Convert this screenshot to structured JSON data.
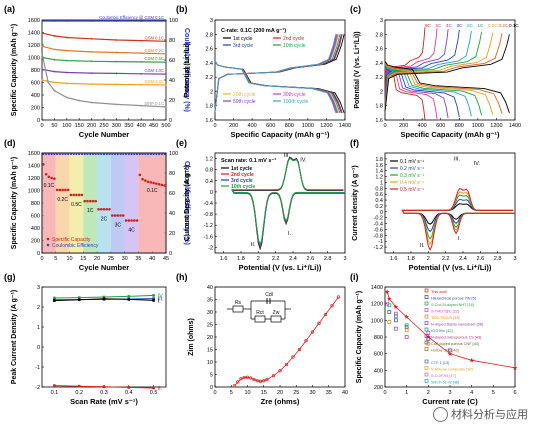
{
  "figure": {
    "panel_labels": [
      "(a)",
      "(b)",
      "(c)",
      "(d)",
      "(e)",
      "(f)",
      "(g)",
      "(h)",
      "(i)"
    ],
    "watermark": "材料分析与应用"
  },
  "chart_data": [
    {
      "id": "a",
      "type": "line",
      "xlabel": "Cycle Number",
      "ylabel": "Specific Capacity (mAh g⁻¹)",
      "y2label": "Coulombic Efficiency (%)",
      "xlim": [
        0,
        500
      ],
      "ylim": [
        0,
        1600
      ],
      "y2lim": [
        0,
        100
      ],
      "xticks": [
        0,
        50,
        100,
        150,
        200,
        250,
        300,
        350,
        400,
        450,
        500
      ],
      "yticks": [
        0,
        200,
        400,
        600,
        800,
        1000,
        1200,
        1400,
        1600
      ],
      "y2ticks": [
        0,
        20,
        40,
        60,
        80,
        100
      ],
      "series": [
        {
          "name": "Coulombic Efficiency @ GSM 0.1C",
          "color": "#3040c0",
          "axis": "y2",
          "x": [
            1,
            50,
            100,
            200,
            300,
            400,
            500
          ],
          "values": [
            99,
            99,
            99,
            99,
            99,
            99,
            99
          ]
        },
        {
          "name": "GSM 0.1C",
          "color": "#d03020",
          "x": [
            1,
            50,
            100,
            200,
            300,
            400,
            500
          ],
          "values": [
            1390,
            1345,
            1320,
            1300,
            1280,
            1270,
            1260
          ]
        },
        {
          "name": "GSM 0.2C",
          "color": "#e07a20",
          "x": [
            1,
            50,
            100,
            200,
            300,
            400,
            500
          ],
          "values": [
            1180,
            1130,
            1110,
            1090,
            1080,
            1070,
            1060
          ]
        },
        {
          "name": "GSM 0.5C",
          "color": "#30a040",
          "x": [
            1,
            50,
            100,
            200,
            300,
            400,
            500
          ],
          "values": [
            1000,
            965,
            950,
            940,
            935,
            930,
            925
          ]
        },
        {
          "name": "GSM 1.0C",
          "color": "#8040a0",
          "x": [
            1,
            50,
            100,
            200,
            300,
            400,
            500
          ],
          "values": [
            810,
            775,
            760,
            750,
            745,
            740,
            735
          ]
        },
        {
          "name": "GSM 2.0C",
          "color": "#f0a020",
          "x": [
            1,
            50,
            100,
            200,
            300,
            400,
            500
          ],
          "values": [
            640,
            600,
            585,
            575,
            570,
            565,
            560
          ]
        },
        {
          "name": "S/RP 0.1C",
          "color": "#909090",
          "x": [
            1,
            25,
            50,
            100,
            150,
            200,
            300,
            400,
            500
          ],
          "values": [
            1050,
            600,
            470,
            360,
            310,
            280,
            250,
            230,
            210
          ]
        }
      ]
    },
    {
      "id": "b",
      "type": "line",
      "annotation": "C-rate: 0.1C (200 mA g⁻¹)",
      "xlabel": "Specific Capacity (mAh g⁻¹)",
      "ylabel": "Potential (Li⁺/Li)",
      "xlim": [
        0,
        1400
      ],
      "ylim": [
        1.6,
        3.0
      ],
      "xticks": [
        0,
        200,
        400,
        600,
        800,
        1000,
        1200,
        1400
      ],
      "yticks": [
        1.6,
        1.8,
        2.0,
        2.2,
        2.4,
        2.6,
        2.8,
        3.0
      ],
      "series": [
        {
          "name": "1st cycle",
          "color": "#000000",
          "capacity": 1390
        },
        {
          "name": "2nd cycle",
          "color": "#d02020",
          "capacity": 1370
        },
        {
          "name": "3rd cycle",
          "color": "#2040c0",
          "capacity": 1360
        },
        {
          "name": "10th cycle",
          "color": "#20a040",
          "capacity": 1345
        },
        {
          "name": "20th cycle",
          "color": "#e0c020",
          "capacity": 1330
        },
        {
          "name": "30th cycle",
          "color": "#c040c0",
          "capacity": 1320
        },
        {
          "name": "50th cycle",
          "color": "#8040c0",
          "capacity": 1310
        },
        {
          "name": "100th cycle",
          "color": "#40a0c0",
          "capacity": 1300
        }
      ],
      "legend_top": [
        "1st cycle",
        "2nd cycle",
        "3rd cycle",
        "10th cycle"
      ],
      "legend_bottom": [
        "20th cycle",
        "30th cycle",
        "50th cycle",
        "100th cycle"
      ]
    },
    {
      "id": "c",
      "type": "line",
      "xlabel": "Specific Capacity (mAh g⁻¹)",
      "ylabel": "Potential (V (vs. Li⁺/Li))",
      "xlim": [
        0,
        1400
      ],
      "ylim": [
        1.6,
        3.0
      ],
      "xticks": [
        0,
        200,
        400,
        600,
        800,
        1000,
        1200,
        1400
      ],
      "yticks": [
        1.6,
        1.8,
        2.0,
        2.2,
        2.4,
        2.6,
        2.8,
        3.0
      ],
      "series": [
        {
          "name": "6C",
          "color": "#d02020",
          "capacity": 430
        },
        {
          "name": "5C",
          "color": "#e04080",
          "capacity": 560
        },
        {
          "name": "4C",
          "color": "#8040c0",
          "capacity": 680
        },
        {
          "name": "3C",
          "color": "#2040c0",
          "capacity": 800
        },
        {
          "name": "2C",
          "color": "#20a0c0",
          "capacity": 930
        },
        {
          "name": "1C",
          "color": "#20a040",
          "capacity": 1040
        },
        {
          "name": "0.5C",
          "color": "#e0a020",
          "capacity": 1160
        },
        {
          "name": "0.2C",
          "color": "#e06020",
          "capacity": 1260
        },
        {
          "name": "0.1C",
          "color": "#000000",
          "capacity": 1340
        }
      ],
      "rate_labels": [
        "6C",
        "5C",
        "4C",
        "3C",
        "2C",
        "1C",
        "0.5C",
        "0.2C",
        "0.1C"
      ]
    },
    {
      "id": "d",
      "type": "scatter",
      "xlabel": "Cycle Number",
      "ylabel": "Specific Capacity (mAh g⁻¹)",
      "y2label": "Coulombic Efficiency (%)",
      "xlim": [
        0,
        45
      ],
      "ylim": [
        0,
        1600
      ],
      "y2lim": [
        0,
        100
      ],
      "xticks": [
        0,
        5,
        10,
        15,
        20,
        25,
        30,
        35,
        40,
        45
      ],
      "yticks": [
        0,
        200,
        400,
        600,
        800,
        1000,
        1200,
        1400,
        1600
      ],
      "y2ticks": [
        0,
        20,
        40,
        60,
        80,
        100
      ],
      "bands": [
        {
          "label": "0.1C",
          "x": [
            0,
            5
          ],
          "color": "#f5a0a0",
          "capacity": 1230
        },
        {
          "label": "0.2C",
          "x": [
            5,
            10
          ],
          "color": "#f8c890",
          "capacity": 1010
        },
        {
          "label": "0.5C",
          "x": [
            10,
            15
          ],
          "color": "#f0e890",
          "capacity": 930
        },
        {
          "label": "1C",
          "x": [
            15,
            20
          ],
          "color": "#a8e0a0",
          "capacity": 830
        },
        {
          "label": "2C",
          "x": [
            20,
            25
          ],
          "color": "#a0d8e8",
          "capacity": 700
        },
        {
          "label": "3C",
          "x": [
            25,
            30
          ],
          "color": "#a8b8f0",
          "capacity": 600
        },
        {
          "label": "4C",
          "x": [
            30,
            35
          ],
          "color": "#c8b0f0",
          "capacity": 520
        },
        {
          "label": "0.1C",
          "x": [
            35,
            45
          ],
          "color": "#f5a0a0",
          "capacity": 1150
        }
      ],
      "series": [
        {
          "name": "Specific Capacity",
          "color": "#d02020"
        },
        {
          "name": "Coulombic Efficiency",
          "color": "#3040c0",
          "value": 99
        }
      ]
    },
    {
      "id": "e",
      "type": "line",
      "annotation": "Scan rate: 0.1 mV s⁻¹",
      "xlabel": "Potential (V (vs. Li⁺/Li))",
      "ylabel": "Current Density (A g⁻¹)",
      "xlim": [
        1.5,
        3.0
      ],
      "ylim": [
        -2.2,
        1.4
      ],
      "xticks": [
        1.6,
        1.8,
        2.0,
        2.2,
        2.4,
        2.6,
        2.8,
        3.0
      ],
      "yticks": [
        -2.0,
        -1.6,
        -1.2,
        -0.8,
        -0.4,
        0.0,
        0.4,
        0.8,
        1.2
      ],
      "series": [
        {
          "name": "1st cycle",
          "color": "#000000"
        },
        {
          "name": "2nd cycle",
          "color": "#d02020"
        },
        {
          "name": "3rd cycle",
          "color": "#2040c0"
        },
        {
          "name": "10th cycle",
          "color": "#20a040"
        }
      ],
      "peak_labels": [
        "I.",
        "II.",
        "III.",
        "IV."
      ]
    },
    {
      "id": "f",
      "type": "line",
      "xlabel": "Potential (V (vs. Li⁺/Li))",
      "ylabel": "Current density (A g⁻¹)",
      "xlim": [
        1.5,
        3.0
      ],
      "ylim": [
        -1.4,
        2.0
      ],
      "xticks": [
        1.6,
        1.8,
        2.0,
        2.2,
        2.4,
        2.6,
        2.8,
        3.0
      ],
      "yticks": [
        -1.2,
        -1.0,
        -0.8,
        -0.6,
        -0.4,
        -0.2,
        0.0,
        0.2,
        0.4,
        0.6,
        0.8,
        1.0,
        1.2,
        1.4,
        1.6,
        1.8
      ],
      "series": [
        {
          "name": "0.1 mV s⁻¹",
          "color": "#000000",
          "scale": 0.3
        },
        {
          "name": "0.2 mV s⁻¹",
          "color": "#2040c0",
          "scale": 0.5
        },
        {
          "name": "0.3 mV s⁻¹",
          "color": "#20a040",
          "scale": 0.7
        },
        {
          "name": "0.4 mV s⁻¹",
          "color": "#e0a020",
          "scale": 0.85
        },
        {
          "name": "0.5 mV s⁻¹",
          "color": "#d02020",
          "scale": 1.0
        }
      ],
      "peak_labels": [
        "I.",
        "II.",
        "III.",
        "IV."
      ]
    },
    {
      "id": "g",
      "type": "line",
      "xlabel": "Scan Rate (mV s⁻¹)",
      "ylabel": "Peak Current Density (A g⁻¹)",
      "xlim": [
        0.05,
        0.55
      ],
      "ylim": [
        -2.0,
        3.0
      ],
      "xticks": [
        0.1,
        0.2,
        0.3,
        0.4,
        0.5
      ],
      "yticks": [
        -2,
        -1,
        0,
        1,
        2,
        3
      ],
      "x": [
        0.1,
        0.2,
        0.3,
        0.4,
        0.5
      ],
      "series": [
        {
          "name": "IV.",
          "color": "#20a040",
          "values": [
            2.45,
            2.47,
            2.5,
            2.53,
            2.58
          ]
        },
        {
          "name": "III.",
          "color": "#2040c0",
          "values": [
            2.36,
            2.37,
            2.38,
            2.4,
            2.42
          ]
        },
        {
          "name": "I.",
          "color": "#000000",
          "values": [
            2.32,
            2.36,
            2.41,
            2.38,
            2.33
          ]
        },
        {
          "name": "II.",
          "color": "#d02020",
          "values": [
            -1.93,
            -1.96,
            -1.99,
            -2.02,
            -2.05
          ]
        }
      ]
    },
    {
      "id": "h",
      "type": "scatter",
      "xlabel": "Zre (ohms)",
      "ylabel": "Zim (ohms)",
      "xlim": [
        0,
        40
      ],
      "ylim": [
        0,
        40
      ],
      "xticks": [
        0,
        5,
        10,
        15,
        20,
        25,
        30,
        35,
        40
      ],
      "yticks": [
        0,
        5,
        10,
        15,
        20,
        25,
        30,
        35,
        40
      ],
      "series": [
        {
          "color": "#d02020",
          "x": [
            6,
            7,
            8,
            9,
            10,
            11,
            12,
            13,
            14,
            15,
            16,
            18,
            20,
            22,
            24,
            26,
            28,
            30,
            32,
            34,
            36,
            38
          ],
          "values": [
            0.5,
            2,
            3.3,
            3.8,
            3.9,
            3.6,
            3,
            2.5,
            2.3,
            2.5,
            3,
            4.5,
            6.5,
            9,
            12,
            15,
            18.5,
            22,
            25.5,
            29,
            32.5,
            36
          ]
        }
      ],
      "circuit_labels": [
        "Rs",
        "Cdl",
        "Rct",
        "Zw"
      ]
    },
    {
      "id": "i",
      "type": "scatter",
      "xlabel": "Current rate (C)",
      "ylabel": "Specific Capacity (mAh g⁻¹)",
      "xlim": [
        0,
        6
      ],
      "ylim": [
        200,
        1400
      ],
      "xticks": [
        0,
        1,
        2,
        3,
        4,
        5,
        6
      ],
      "yticks": [
        200,
        400,
        600,
        800,
        1000,
        1200,
        1400
      ],
      "this_work": {
        "name": "This work",
        "color": "#d02020",
        "x": [
          0.1,
          0.2,
          0.5,
          1,
          2,
          3,
          4,
          6
        ],
        "values": [
          1340,
          1260,
          1160,
          1040,
          800,
          600,
          520,
          430
        ]
      },
      "legend": [
        {
          "name": "This work",
          "color": "#d02020"
        },
        {
          "name": "Hierarchical porous TiN [5]",
          "color": "#3040a0"
        },
        {
          "name": "S-Co4-N-doped NHT [16]",
          "color": "#20a040"
        },
        {
          "name": "S-Ti4O7@C [22]",
          "color": "#c040c0"
        },
        {
          "name": "TiO2-TiO2/S [33]",
          "color": "#e08020"
        },
        {
          "name": "N-doped titania nanosheet [38]",
          "color": "#8040c0"
        },
        {
          "name": "rGO film [42]",
          "color": "#208080"
        },
        {
          "name": "N-doped microporous CS [43]",
          "color": "#c02080"
        },
        {
          "name": "CoP doped porous CNF [44]",
          "color": "#606020"
        },
        {
          "name": "Hollow CNF [46]",
          "color": "#a06020"
        },
        {
          "name": "CTF-1 [13]",
          "color": "#4060c0"
        },
        {
          "name": "S-MXene composite [39]",
          "color": "#e0a020"
        },
        {
          "name": "S-COF-95 [47]",
          "color": "#d060a0"
        },
        {
          "name": "SNCF-61-W [48]",
          "color": "#20a0c0"
        }
      ],
      "others": [
        {
          "color": "#3040a0",
          "x": [
            0.2,
            0.5,
            1,
            2
          ],
          "values": [
            1100,
            1000,
            920,
            780
          ]
        },
        {
          "color": "#20a040",
          "x": [
            0.2,
            0.5,
            1
          ],
          "values": [
            1180,
            1050,
            940
          ]
        },
        {
          "color": "#c040c0",
          "x": [
            0.1,
            0.5,
            2
          ],
          "values": [
            1200,
            1080,
            850
          ]
        },
        {
          "color": "#e08020",
          "x": [
            0.2,
            1,
            2
          ],
          "values": [
            980,
            880,
            720
          ]
        },
        {
          "color": "#8040c0",
          "x": [
            0.5,
            1,
            3
          ],
          "values": [
            900,
            800,
            640
          ]
        }
      ]
    }
  ]
}
